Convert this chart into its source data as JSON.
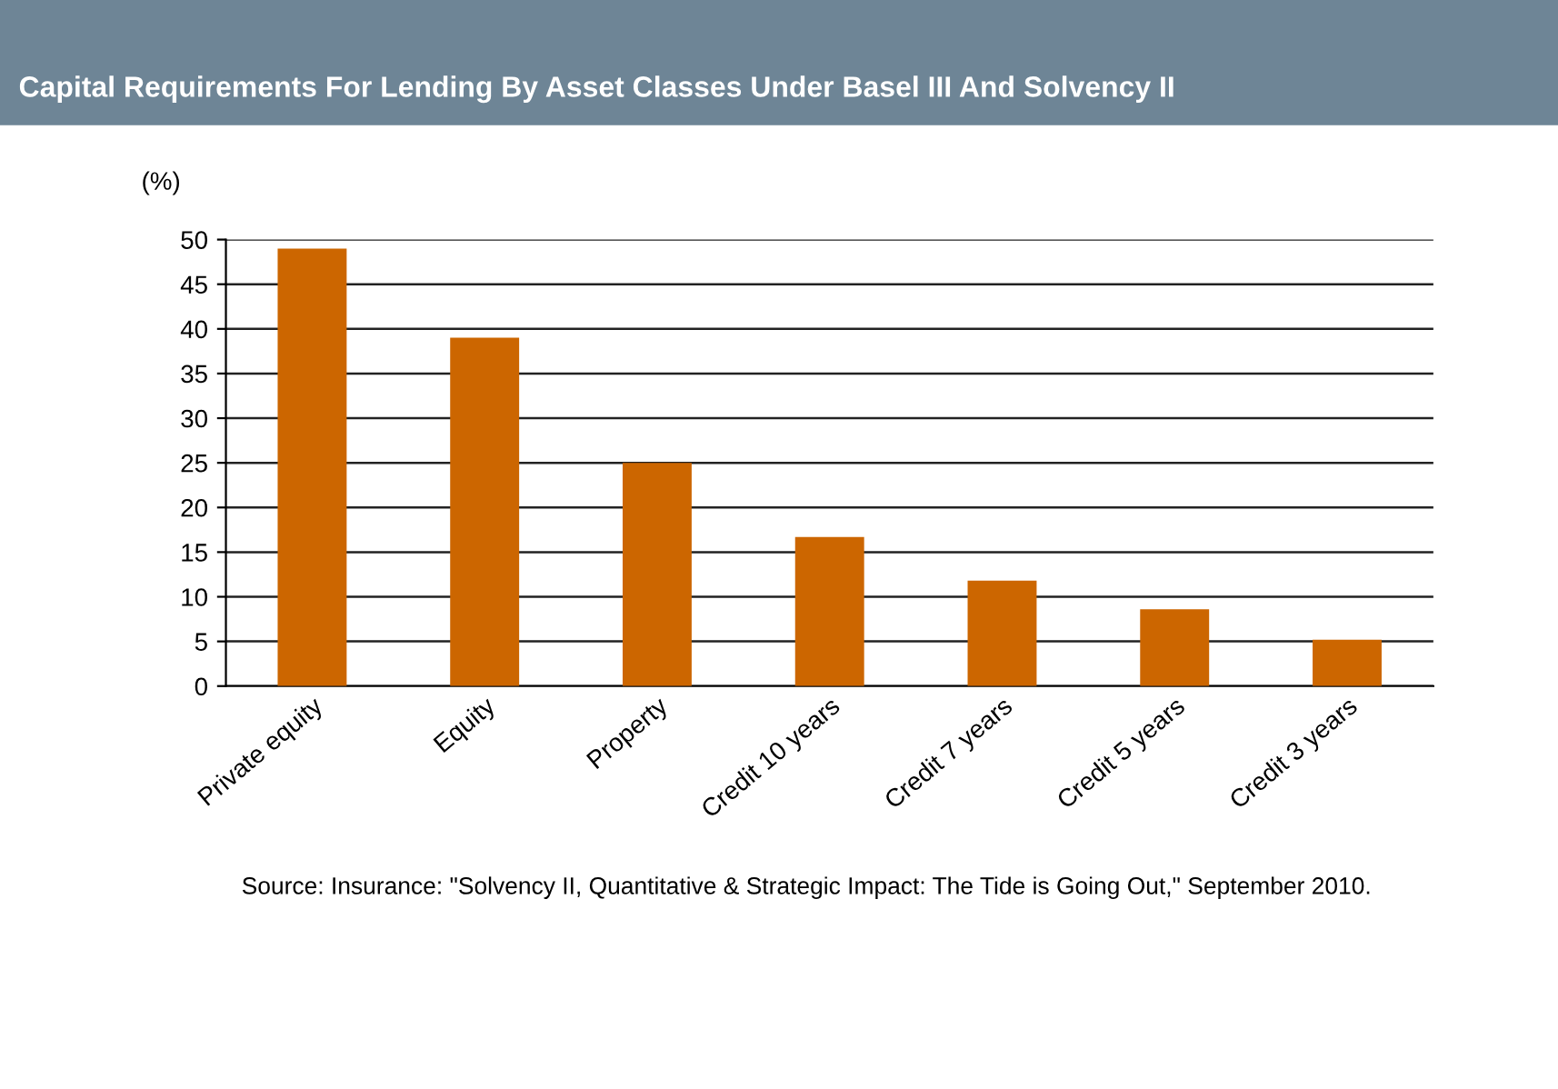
{
  "chart_data": {
    "type": "bar",
    "title": "Capital Requirements For Lending By Asset Classes Under Basel III And Solvency II",
    "ylabel": "(%)",
    "categories": [
      "Private equity",
      "Equity",
      "Property",
      "Credit 10 years",
      "Credit 7 years",
      "Credit 5 years",
      "Credit 3 years"
    ],
    "values": [
      49,
      39,
      25,
      16.7,
      11.8,
      8.6,
      5.2
    ],
    "color": "#cc6600",
    "ylim": [
      0,
      50
    ],
    "yticks": [
      0,
      5,
      10,
      15,
      20,
      25,
      30,
      35,
      40,
      45,
      50
    ],
    "grid": "y",
    "annotations": [
      "Source: Insurance: \"Solvency II, Quantitative & Strategic Impact: The Tide is Going Out,\" September 2010."
    ]
  }
}
